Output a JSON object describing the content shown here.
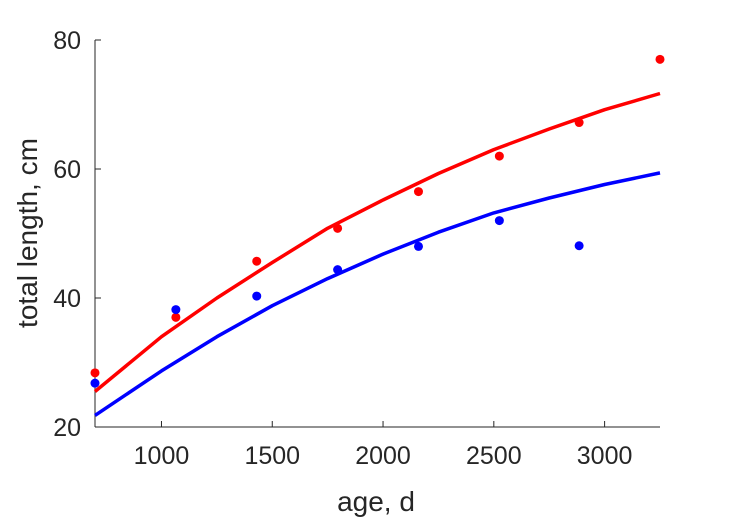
{
  "chart_data": {
    "type": "scatter",
    "title": "",
    "xlabel": "age, d",
    "ylabel": "total length, cm",
    "xlim": [
      700,
      3250
    ],
    "ylim": [
      20,
      80
    ],
    "xticks": [
      1000,
      1500,
      2000,
      2500,
      3000
    ],
    "yticks": [
      20,
      40,
      60,
      80
    ],
    "xtick_labels": [
      "1000",
      "1500",
      "2000",
      "2500",
      "3000"
    ],
    "ytick_labels": [
      "20",
      "40",
      "60",
      "80"
    ],
    "grid": false,
    "legend": "none",
    "series": [
      {
        "color": "#ff0000",
        "kind": "points",
        "x": [
          700,
          1065,
          1430,
          1795,
          2160,
          2525,
          2885,
          3250
        ],
        "y": [
          28.4,
          37.0,
          45.7,
          50.8,
          56.5,
          62.0,
          67.2,
          77.0
        ]
      },
      {
        "color": "#0000ff",
        "kind": "points",
        "x": [
          700,
          1065,
          1430,
          1795,
          2160,
          2525,
          2885
        ],
        "y": [
          26.8,
          38.2,
          40.3,
          44.4,
          48.0,
          52.0,
          48.1
        ]
      },
      {
        "color": "#ff0000",
        "kind": "line",
        "x": [
          700,
          1000,
          1250,
          1500,
          1750,
          2000,
          2250,
          2500,
          2750,
          3000,
          3250
        ],
        "y": [
          25.5,
          34.0,
          40.0,
          45.5,
          50.8,
          55.2,
          59.3,
          63.0,
          66.2,
          69.2,
          71.7
        ]
      },
      {
        "color": "#0000ff",
        "kind": "line",
        "x": [
          700,
          1000,
          1250,
          1500,
          1750,
          2000,
          2250,
          2500,
          2750,
          3000,
          3250
        ],
        "y": [
          21.8,
          28.7,
          34.0,
          38.8,
          43.0,
          46.8,
          50.2,
          53.2,
          55.5,
          57.6,
          59.4
        ]
      }
    ]
  }
}
